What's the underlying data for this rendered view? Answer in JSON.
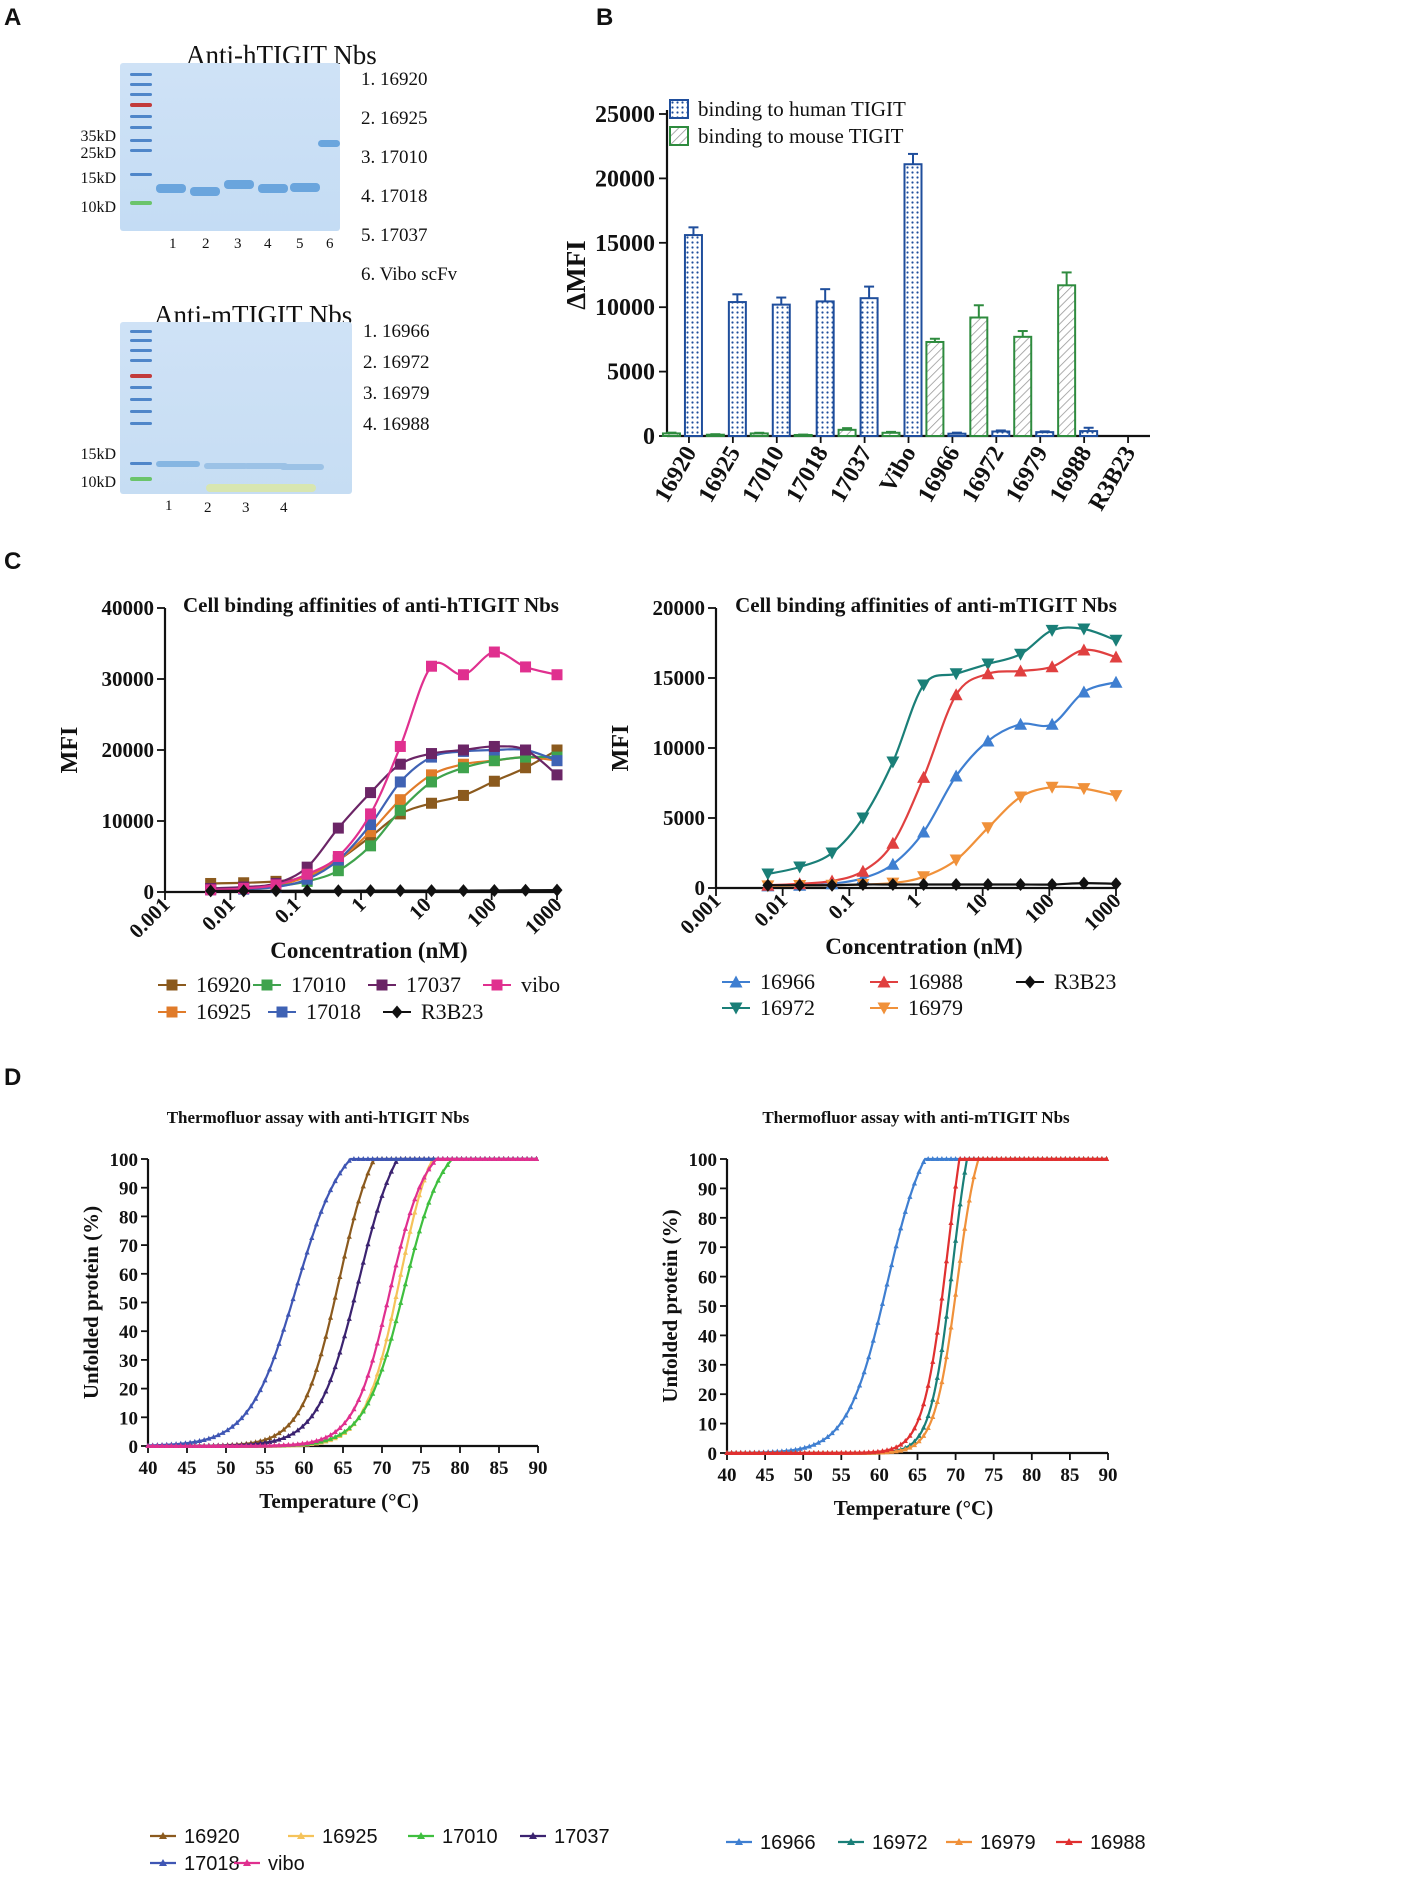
{
  "panel_labels": {
    "a": "A",
    "b": "B",
    "c": "C",
    "d": "D"
  },
  "gels": {
    "h": {
      "title": "Anti-hTIGIT Nbs",
      "lanes": [
        "1. 16920",
        "2. 16925",
        "3. 17010",
        "4. 17018",
        "5. 17037",
        "6. Vibo scFv"
      ],
      "markers": [
        "35kD",
        "25kD",
        "15kD",
        "10kD"
      ],
      "lane_numbers": [
        "1",
        "2",
        "3",
        "4",
        "5",
        "6"
      ]
    },
    "m": {
      "title": "Anti-mTIGIT Nbs",
      "lanes": [
        "1. 16966",
        "2. 16972",
        "3. 16979",
        "4. 16988"
      ],
      "markers": [
        "15kD",
        "10kD"
      ],
      "lane_numbers": [
        "1",
        "2",
        "3",
        "4"
      ]
    }
  },
  "chart_data": [
    {
      "id": "B",
      "type": "bar",
      "title": "",
      "xlabel": "",
      "ylabel": "ΔMFI",
      "ylim": [
        0,
        25000
      ],
      "yticks": [
        "0",
        "5000",
        "10000",
        "15000",
        "20000",
        "25000"
      ],
      "categories": [
        "16920",
        "16925",
        "17010",
        "17018",
        "17037",
        "Vibo",
        "16966",
        "16972",
        "16979",
        "16988",
        "R3B23"
      ],
      "legend": [
        "binding to human TIGIT",
        "binding to mouse TIGIT"
      ],
      "series": [
        {
          "name": "binding to human TIGIT",
          "color": "#1f4e9c",
          "values": [
            15600,
            10400,
            10200,
            10450,
            10700,
            21100,
            180,
            350,
            300,
            380,
            0
          ],
          "errors": [
            600,
            600,
            550,
            950,
            900,
            800,
            80,
            80,
            60,
            260,
            0
          ]
        },
        {
          "name": "binding to mouse TIGIT",
          "color": "#2e8b3e",
          "values": [
            200,
            100,
            200,
            80,
            480,
            250,
            7300,
            9200,
            7700,
            11700,
            0
          ],
          "errors": [
            60,
            40,
            50,
            30,
            130,
            70,
            250,
            950,
            450,
            1000,
            0
          ]
        }
      ]
    },
    {
      "id": "C-left",
      "type": "scatter",
      "title": "Cell binding affinities of anti-hTIGIT Nbs",
      "xlabel": "Concentration (nM)",
      "ylabel": "MFI",
      "xscale": "log",
      "xticks": [
        "0.001",
        "0.01",
        "0.1",
        "1",
        "10",
        "100",
        "1000"
      ],
      "yticks": [
        "0",
        "10000",
        "20000",
        "30000",
        "40000"
      ],
      "ylim": [
        0,
        40000
      ],
      "x": [
        0.005,
        0.016,
        0.05,
        0.15,
        0.45,
        1.4,
        4,
        12,
        37,
        110,
        330,
        1000
      ],
      "series": [
        {
          "name": "16920",
          "color": "#8b5a1e",
          "marker": "square",
          "values": [
            1200,
            1300,
            1500,
            2200,
            4500,
            7800,
            11000,
            12500,
            13600,
            15600,
            17500,
            20000
          ]
        },
        {
          "name": "16925",
          "color": "#e07b2a",
          "marker": "square",
          "values": [
            500,
            600,
            900,
            2200,
            4500,
            8500,
            13000,
            16500,
            18000,
            18500,
            19000,
            18500
          ]
        },
        {
          "name": "17010",
          "color": "#3fa34d",
          "marker": "square",
          "values": [
            400,
            500,
            800,
            1500,
            3000,
            6500,
            11500,
            15500,
            17500,
            18500,
            19000,
            19000
          ]
        },
        {
          "name": "17018",
          "color": "#3f62b4",
          "marker": "square",
          "values": [
            300,
            400,
            700,
            1800,
            4500,
            9500,
            15500,
            19000,
            19800,
            20000,
            20000,
            18500
          ]
        },
        {
          "name": "17037",
          "color": "#6b2566",
          "marker": "square",
          "values": [
            500,
            700,
            1200,
            3500,
            9000,
            14000,
            18000,
            19500,
            20000,
            20500,
            20000,
            16500
          ]
        },
        {
          "name": "vibo",
          "color": "#e0308f",
          "marker": "square",
          "values": [
            300,
            500,
            1000,
            2500,
            5000,
            11000,
            20500,
            31800,
            30600,
            33800,
            31700,
            30600
          ]
        },
        {
          "name": "R3B23",
          "color": "#111111",
          "marker": "diamond",
          "values": [
            150,
            160,
            170,
            180,
            180,
            200,
            200,
            200,
            200,
            220,
            250,
            260
          ]
        }
      ]
    },
    {
      "id": "C-right",
      "type": "scatter",
      "title": "Cell binding affinities of anti-mTIGIT Nbs",
      "xlabel": "Concentration (nM)",
      "ylabel": "MFI",
      "xscale": "log",
      "xticks": [
        "0.001",
        "0.01",
        "0.1",
        "1",
        "10",
        "100",
        "1000"
      ],
      "yticks": [
        "0",
        "5000",
        "10000",
        "15000",
        "20000"
      ],
      "ylim": [
        0,
        20000
      ],
      "x": [
        0.006,
        0.018,
        0.055,
        0.16,
        0.45,
        1.3,
        4,
        12,
        37,
        110,
        330,
        1000
      ],
      "series": [
        {
          "name": "16966",
          "color": "#3f7fd1",
          "marker": "triangle-up",
          "values": [
            150,
            200,
            300,
            700,
            1700,
            4000,
            8000,
            10500,
            11700,
            11700,
            14000,
            14700
          ]
        },
        {
          "name": "16972",
          "color": "#1a7f78",
          "marker": "triangle-down",
          "values": [
            1000,
            1500,
            2500,
            5000,
            9000,
            14500,
            15300,
            16000,
            16700,
            18400,
            18500,
            17700
          ]
        },
        {
          "name": "16988",
          "color": "#e04040",
          "marker": "triangle-up",
          "values": [
            200,
            300,
            500,
            1200,
            3200,
            7900,
            13800,
            15300,
            15500,
            15800,
            17000,
            16500
          ]
        },
        {
          "name": "16979",
          "color": "#f0913a",
          "marker": "triangle-down",
          "values": [
            150,
            180,
            200,
            250,
            350,
            800,
            2000,
            4300,
            6500,
            7200,
            7100,
            6600
          ]
        },
        {
          "name": "R3B23",
          "color": "#111111",
          "marker": "diamond",
          "values": [
            200,
            200,
            200,
            250,
            250,
            250,
            250,
            250,
            250,
            250,
            350,
            300
          ]
        }
      ]
    },
    {
      "id": "D-left",
      "type": "line",
      "title": "Thermofluor assay with anti-hTIGIT Nbs",
      "xlabel": "Temperature (°C)",
      "ylabel": "Unfolded protein (%)",
      "xlim": [
        40,
        90
      ],
      "ylim": [
        0,
        100
      ],
      "xticks": [
        "40",
        "45",
        "50",
        "55",
        "60",
        "65",
        "70",
        "75",
        "80",
        "85",
        "90"
      ],
      "yticks": [
        "0",
        "10",
        "20",
        "30",
        "40",
        "50",
        "60",
        "70",
        "80",
        "90",
        "100"
      ],
      "series": [
        {
          "name": "16920",
          "color": "#8b5a1e",
          "tm": 64.5,
          "slope": 2.4,
          "sat": 69
        },
        {
          "name": "16925",
          "color": "#f5c35a",
          "tm": 72.2,
          "slope": 2.2,
          "sat": 76.5
        },
        {
          "name": "17010",
          "color": "#3fbf3f",
          "tm": 72.8,
          "slope": 2.5,
          "sat": 79
        },
        {
          "name": "17037",
          "color": "#3b2370",
          "tm": 67,
          "slope": 2.6,
          "sat": 72
        },
        {
          "name": "17018",
          "color": "#3f56b4",
          "tm": 59,
          "slope": 3.0,
          "sat": 66
        },
        {
          "name": "vibo",
          "color": "#e0308f",
          "tm": 71,
          "slope": 2.3,
          "sat": 77
        }
      ]
    },
    {
      "id": "D-right",
      "type": "line",
      "title": "Thermofluor assay with anti-mTIGIT Nbs",
      "xlabel": "Temperature (°C)",
      "ylabel": "Unfolded protein (%)",
      "xlim": [
        40,
        90
      ],
      "ylim": [
        0,
        100
      ],
      "xticks": [
        "40",
        "45",
        "50",
        "55",
        "60",
        "65",
        "70",
        "75",
        "80",
        "85",
        "90"
      ],
      "yticks": [
        "0",
        "10",
        "20",
        "30",
        "40",
        "50",
        "60",
        "70",
        "80",
        "90",
        "100"
      ],
      "series": [
        {
          "name": "16966",
          "color": "#3f7fd1",
          "tm": 61,
          "slope": 2.6,
          "sat": 66
        },
        {
          "name": "16972",
          "color": "#1a7f78",
          "tm": 69.6,
          "slope": 1.45,
          "sat": 71.5
        },
        {
          "name": "16979",
          "color": "#f0913a",
          "tm": 70.2,
          "slope": 1.5,
          "sat": 73
        },
        {
          "name": "16988",
          "color": "#e03030",
          "tm": 69,
          "slope": 1.6,
          "sat": 70.5
        }
      ]
    }
  ]
}
